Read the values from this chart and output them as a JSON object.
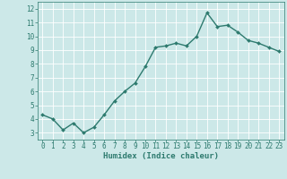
{
  "x": [
    0,
    1,
    2,
    3,
    4,
    5,
    6,
    7,
    8,
    9,
    10,
    11,
    12,
    13,
    14,
    15,
    16,
    17,
    18,
    19,
    20,
    21,
    22,
    23
  ],
  "y": [
    4.3,
    4.0,
    3.2,
    3.7,
    3.0,
    3.4,
    4.3,
    5.3,
    6.0,
    6.6,
    7.8,
    9.2,
    9.3,
    9.5,
    9.3,
    10.0,
    11.7,
    10.7,
    10.8,
    10.3,
    9.7,
    9.5,
    9.2,
    8.9
  ],
  "xlabel": "Humidex (Indice chaleur)",
  "ylim": [
    2.5,
    12.5
  ],
  "xlim": [
    -0.5,
    23.5
  ],
  "yticks": [
    3,
    4,
    5,
    6,
    7,
    8,
    9,
    10,
    11,
    12
  ],
  "xticks": [
    0,
    1,
    2,
    3,
    4,
    5,
    6,
    7,
    8,
    9,
    10,
    11,
    12,
    13,
    14,
    15,
    16,
    17,
    18,
    19,
    20,
    21,
    22,
    23
  ],
  "line_color": "#2d7a6e",
  "marker_color": "#2d7a6e",
  "bg_color": "#cce8e8",
  "grid_color": "#ffffff",
  "axes_bg": "#cce8e8",
  "tick_color": "#2d7a6e",
  "xlabel_fontsize": 6.5,
  "tick_fontsize": 5.5,
  "linewidth": 1.0,
  "markersize": 2.0
}
